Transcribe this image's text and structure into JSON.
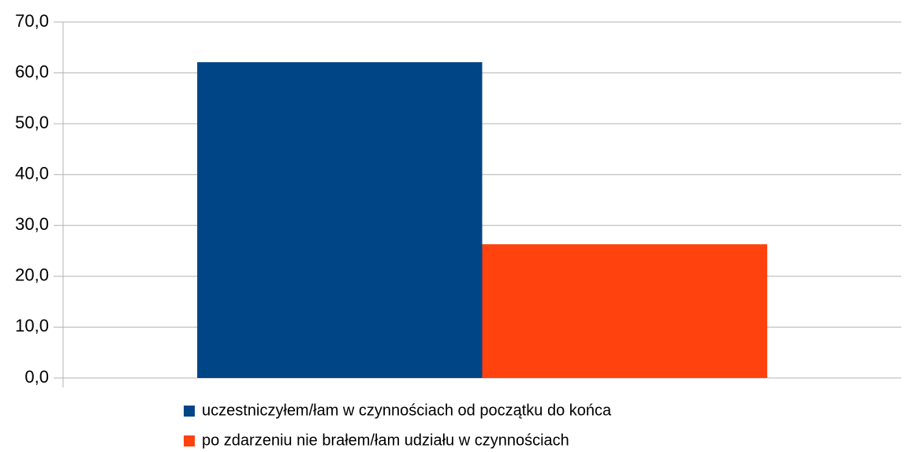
{
  "chart_data": {
    "type": "bar",
    "categories": [
      null
    ],
    "series": [
      {
        "name": "uczestniczyłem/łam w czynnościach od początku do końca",
        "color": "#004586",
        "values": [
          62.1
        ]
      },
      {
        "name": "po zdarzeniu nie brałem/łam udziału w czynnościach",
        "color": "#ff420e",
        "values": [
          26.3
        ]
      }
    ],
    "ylim": [
      0,
      70
    ],
    "yticks": [
      {
        "value": 0,
        "label": "0,0"
      },
      {
        "value": 10,
        "label": "10,0"
      },
      {
        "value": 20,
        "label": "20,0"
      },
      {
        "value": 30,
        "label": "30,0"
      },
      {
        "value": 40,
        "label": "40,0"
      },
      {
        "value": 50,
        "label": "50,0"
      },
      {
        "value": 60,
        "label": "60,0"
      },
      {
        "value": 70,
        "label": "70,0"
      }
    ],
    "grid": true,
    "legend": "bottom"
  }
}
